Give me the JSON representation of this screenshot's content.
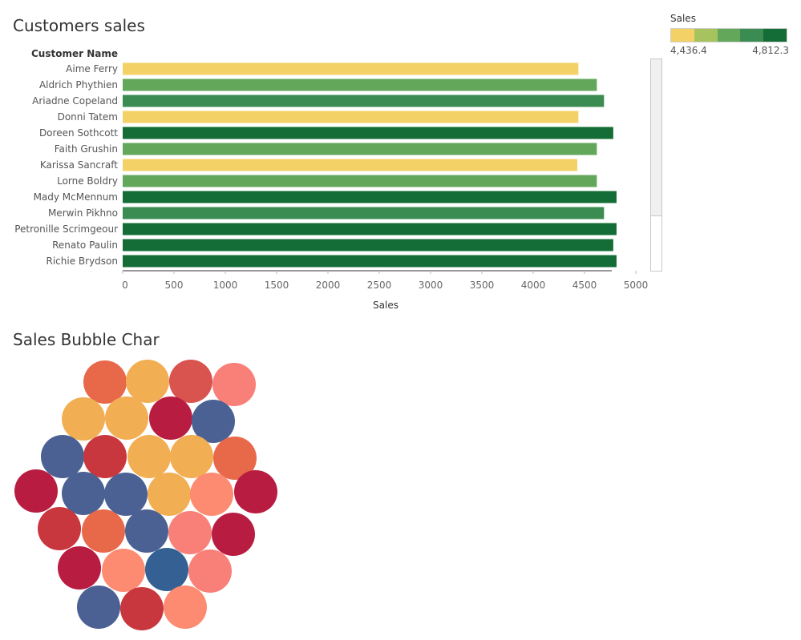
{
  "charts": {
    "bar": {
      "title": "Customers sales",
      "row_header": "Customer Name",
      "xlabel": "Sales"
    },
    "bubble": {
      "title": "Sales Bubble Char"
    }
  },
  "legend": {
    "title": "Sales",
    "min_label": "4,436.4",
    "max_label": "4,812.3",
    "colors": [
      "#f4d166",
      "#a7c35e",
      "#63a75b",
      "#3b8c52",
      "#146c36"
    ]
  },
  "chart_data": [
    {
      "type": "bar",
      "orientation": "horizontal",
      "title": "Customers sales",
      "ylabel": "Customer Name",
      "xlabel": "Sales",
      "xlim": [
        0,
        5000
      ],
      "xticks": [
        0,
        500,
        1000,
        1500,
        2000,
        2500,
        3000,
        3500,
        4000,
        4500,
        5000
      ],
      "categories": [
        "Aime Ferry",
        "Aldrich Phythien",
        "Ariadne Copeland",
        "Donni Tatem",
        "Doreen Sothcott",
        "Faith Grushin",
        "Karissa Sancraft",
        "Lorne Boldry",
        "Mady McMennum",
        "Merwin Pikhno",
        "Petronille Scrimgeour",
        "Renato Paulin",
        "Richie Brydson"
      ],
      "values": [
        4440,
        4620,
        4690,
        4440,
        4780,
        4620,
        4430,
        4620,
        4812,
        4690,
        4812,
        4780,
        4812
      ],
      "colors": [
        "#f4d166",
        "#63a75b",
        "#3b8c52",
        "#f4d166",
        "#146c36",
        "#63a75b",
        "#f4d166",
        "#63a75b",
        "#146c36",
        "#3b8c52",
        "#146c36",
        "#146c36",
        "#146c36"
      ]
    },
    {
      "type": "bubble",
      "title": "Sales Bubble Char",
      "bubbles": [
        {
          "color": "#e8684a"
        },
        {
          "color": "#f1ae52"
        },
        {
          "color": "#d9534f"
        },
        {
          "color": "#f88078"
        },
        {
          "color": "#f1ae52"
        },
        {
          "color": "#f1ae52"
        },
        {
          "color": "#b81d41"
        },
        {
          "color": "#4b6194"
        },
        {
          "color": "#4b6194"
        },
        {
          "color": "#c9373e"
        },
        {
          "color": "#f1ae52"
        },
        {
          "color": "#f1ae52"
        },
        {
          "color": "#e8684a"
        },
        {
          "color": "#b81d41"
        },
        {
          "color": "#4b6194"
        },
        {
          "color": "#4b6194"
        },
        {
          "color": "#f1ae52"
        },
        {
          "color": "#fc8b71"
        },
        {
          "color": "#b81d41"
        },
        {
          "color": "#c9373e"
        },
        {
          "color": "#e8684a"
        },
        {
          "color": "#4b6194"
        },
        {
          "color": "#f88078"
        },
        {
          "color": "#b81d41"
        },
        {
          "color": "#b81d41"
        },
        {
          "color": "#fc8b71"
        },
        {
          "color": "#346094"
        },
        {
          "color": "#f88078"
        },
        {
          "color": "#4b6194"
        },
        {
          "color": "#c9373e"
        },
        {
          "color": "#fc8b71"
        }
      ]
    }
  ]
}
